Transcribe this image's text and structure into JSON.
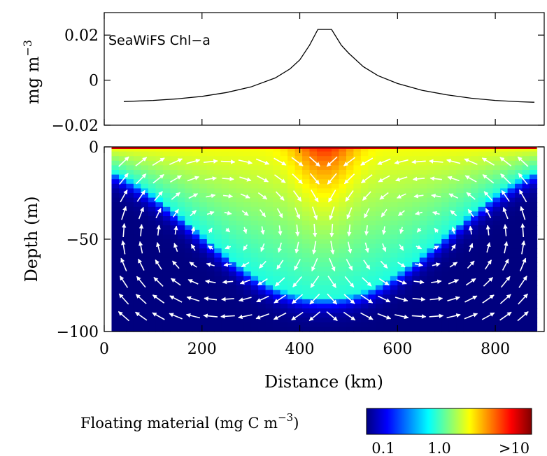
{
  "colors": {
    "line": "#000000",
    "arrow": "#ffffff",
    "colormap": [
      "#00007f",
      "#0000ff",
      "#007fff",
      "#00ffff",
      "#7fff7f",
      "#ffff00",
      "#ff7f00",
      "#ff0000",
      "#7f0000"
    ]
  },
  "top_panel": {
    "ylabel_main": "mg m",
    "ylabel_exp": "−3",
    "label": "SeaWiFS Chl−a"
  },
  "bottom_panel": {
    "ylabel": "Depth (m)",
    "xlabel": "Distance (km)"
  },
  "colorbar": {
    "label_main": "Floating material (mg C m",
    "label_exp": "−3",
    "label_close": ")",
    "ticks": [
      "0.1",
      "1.0",
      ">10"
    ]
  },
  "chart_data": [
    {
      "type": "line",
      "title": "",
      "xlabel": "",
      "ylabel": "mg m−3",
      "annotation": "SeaWiFS Chl−a",
      "xlim": [
        0,
        900
      ],
      "ylim": [
        -0.02,
        0.03
      ],
      "yticks": [
        "0.02",
        "0",
        "−0.02"
      ],
      "ytick_values": [
        0.02,
        0,
        -0.02
      ],
      "x": [
        40,
        100,
        150,
        200,
        250,
        300,
        350,
        380,
        400,
        420,
        437,
        465,
        485,
        500,
        530,
        560,
        600,
        650,
        700,
        750,
        800,
        850,
        880
      ],
      "y": [
        -0.0095,
        -0.009,
        -0.0083,
        -0.0072,
        -0.0055,
        -0.003,
        0.001,
        0.005,
        0.009,
        0.0155,
        0.0225,
        0.0225,
        0.0155,
        0.012,
        0.006,
        0.002,
        -0.0015,
        -0.0045,
        -0.0065,
        -0.008,
        -0.009,
        -0.0096,
        -0.0098
      ]
    },
    {
      "type": "heatmap",
      "title": "",
      "xlabel": "Distance (km)",
      "ylabel": "Depth (m)",
      "xlim": [
        0,
        900
      ],
      "ylim": [
        -100,
        0
      ],
      "xticks": [
        "0",
        "200",
        "400",
        "600",
        "800"
      ],
      "xtick_values": [
        0,
        200,
        400,
        600,
        800
      ],
      "yticks": [
        "0",
        "−50",
        "−100"
      ],
      "ytick_values": [
        0,
        -50,
        -100
      ],
      "colorbar_label": "Floating material (mg C m−3)",
      "colorbar_ticks": [
        "0.1",
        "1.0",
        ">10"
      ],
      "colorbar_scale": "log",
      "colorbar_range": [
        0.1,
        10
      ],
      "field_description_values": {
        "surface_layer_max": 10,
        "center_x": 450,
        "deep_min": 0.1
      },
      "overlay": "velocity vectors (white arrows), two counter-rotating overturning cells: surface flow converging toward x≈450 km, downwelling at center, divergent return flow near −85 m"
    }
  ]
}
